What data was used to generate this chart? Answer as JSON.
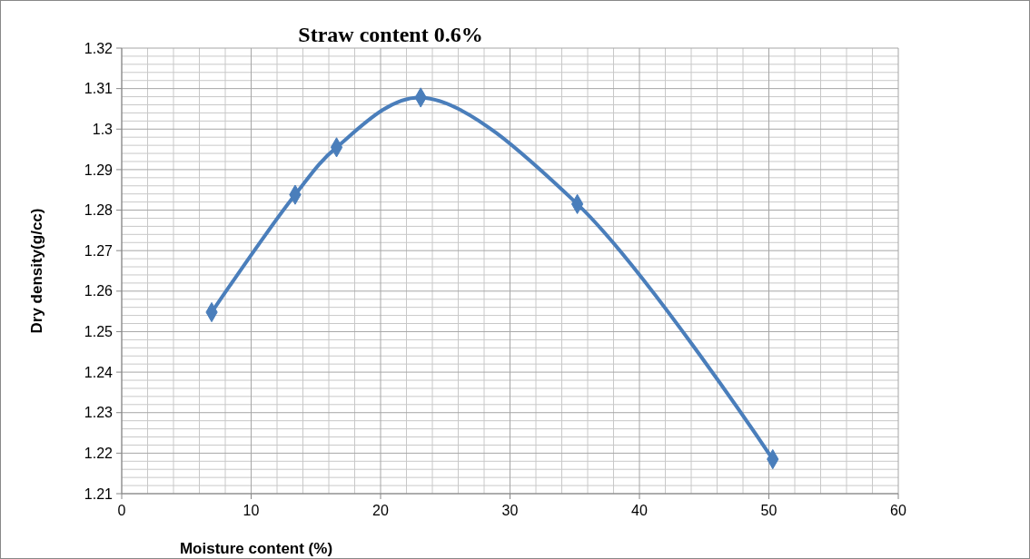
{
  "chart_data": {
    "type": "line",
    "title": "Straw content 0.6%",
    "xlabel": "Moisture content (%)",
    "ylabel": "Dry density(g/cc)",
    "x": [
      6.95,
      13.4,
      16.6,
      23.1,
      35.2,
      50.3
    ],
    "series": [
      {
        "color": "#4a7ebb",
        "values": [
          1.2548,
          1.2838,
          1.2955,
          1.3078,
          1.2815,
          1.2185
        ]
      }
    ],
    "xlim": [
      0,
      60
    ],
    "xticks": [
      0,
      10,
      20,
      30,
      40,
      50,
      60
    ],
    "ylim": [
      1.21,
      1.32
    ],
    "yticks": [
      1.21,
      1.22,
      1.23,
      1.24,
      1.25,
      1.26,
      1.27,
      1.28,
      1.29,
      1.3,
      1.31,
      1.32
    ],
    "grid": true,
    "marker": "diamond",
    "line_style": "solid"
  }
}
